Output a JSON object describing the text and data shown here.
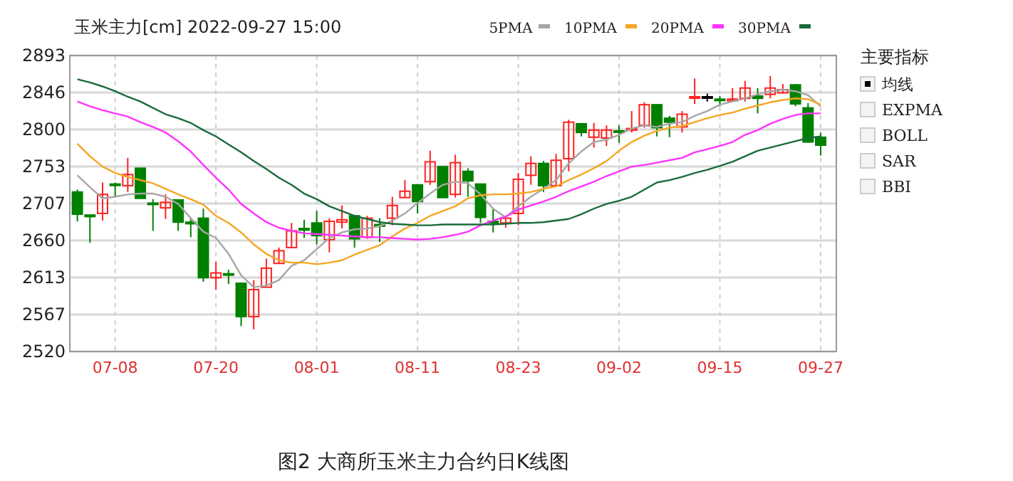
{
  "chart_data": {
    "type": "candlestick",
    "title": "玉米主力[cm] 2022-09-27 15:00",
    "categories": [
      null,
      null,
      null,
      "07-08",
      null,
      null,
      null,
      null,
      null,
      null,
      null,
      "07-20",
      null,
      null,
      null,
      null,
      null,
      null,
      null,
      "08-01",
      null,
      null,
      null,
      null,
      null,
      null,
      null,
      "08-11",
      null,
      null,
      null,
      null,
      null,
      null,
      null,
      "08-23",
      null,
      null,
      null,
      null,
      null,
      null,
      null,
      "09-02",
      null,
      null,
      null,
      null,
      null,
      null,
      null,
      "09-15",
      null,
      null,
      null,
      null,
      null,
      null,
      null,
      "09-27"
    ],
    "ohlc": [
      [
        2721,
        2724,
        2684,
        2693
      ],
      [
        2692,
        2692,
        2657,
        2690
      ],
      [
        2694,
        2733,
        2685,
        2718
      ],
      [
        2731,
        2733,
        2715,
        2730
      ],
      [
        2729,
        2764,
        2721,
        2743
      ],
      [
        2751,
        2751,
        2713,
        2713
      ],
      [
        2707,
        2712,
        2672,
        2706
      ],
      [
        2701,
        2718,
        2687,
        2708
      ],
      [
        2711,
        2711,
        2672,
        2683
      ],
      [
        2683,
        2688,
        2664,
        2681
      ],
      [
        2688,
        2700,
        2608,
        2613
      ],
      [
        2613,
        2633,
        2598,
        2619
      ],
      [
        2618,
        2623,
        2605,
        2617
      ],
      [
        2606,
        2606,
        2552,
        2564
      ],
      [
        2564,
        2610,
        2548,
        2598
      ],
      [
        2601,
        2637,
        2601,
        2625
      ],
      [
        2631,
        2651,
        2631,
        2647
      ],
      [
        2651,
        2682,
        2651,
        2672
      ],
      [
        2675,
        2686,
        2663,
        2673
      ],
      [
        2682,
        2697,
        2655,
        2666
      ],
      [
        2661,
        2688,
        2645,
        2684
      ],
      [
        2683,
        2704,
        2675,
        2686
      ],
      [
        2691,
        2691,
        2651,
        2662
      ],
      [
        2664,
        2691,
        2662,
        2688
      ],
      [
        2680,
        2688,
        2658,
        2678
      ],
      [
        2688,
        2715,
        2679,
        2704
      ],
      [
        2714,
        2736,
        2714,
        2722
      ],
      [
        2730,
        2730,
        2694,
        2709
      ],
      [
        2734,
        2773,
        2730,
        2759
      ],
      [
        2753,
        2753,
        2714,
        2714
      ],
      [
        2718,
        2768,
        2714,
        2758
      ],
      [
        2747,
        2751,
        2715,
        2735
      ],
      [
        2731,
        2731,
        2682,
        2689
      ],
      [
        2684,
        2701,
        2670,
        2683
      ],
      [
        2682,
        2690,
        2676,
        2688
      ],
      [
        2694,
        2745,
        2679,
        2737
      ],
      [
        2742,
        2766,
        2730,
        2757
      ],
      [
        2757,
        2760,
        2721,
        2729
      ],
      [
        2729,
        2769,
        2729,
        2761
      ],
      [
        2763,
        2812,
        2747,
        2809
      ],
      [
        2807,
        2807,
        2791,
        2796
      ],
      [
        2790,
        2808,
        2777,
        2799
      ],
      [
        2789,
        2805,
        2779,
        2799
      ],
      [
        2798,
        2805,
        2783,
        2797
      ],
      [
        2799,
        2823,
        2796,
        2801
      ],
      [
        2805,
        2834,
        2802,
        2831
      ],
      [
        2831,
        2831,
        2791,
        2802
      ],
      [
        2814,
        2817,
        2790,
        2809
      ],
      [
        2803,
        2823,
        2796,
        2819
      ],
      [
        2840,
        2864,
        2832,
        2841
      ],
      [
        2841,
        2845,
        2835,
        2841
      ],
      [
        2838,
        2842,
        2829,
        2837
      ],
      [
        2836,
        2852,
        2835,
        2838
      ],
      [
        2839,
        2861,
        2835,
        2852
      ],
      [
        2842,
        2852,
        2820,
        2839
      ],
      [
        2844,
        2867,
        2839,
        2852
      ],
      [
        2846,
        2857,
        2845,
        2850
      ],
      [
        2856,
        2857,
        2829,
        2832
      ],
      [
        2827,
        2833,
        2784,
        2784
      ],
      [
        2790,
        2796,
        2767,
        2780
      ]
    ],
    "series": [
      {
        "name": "5PMA",
        "type": "line",
        "color": "#a6a6a6",
        "values": [
          2742,
          2727,
          2713,
          2715,
          2718,
          2719,
          2719,
          2715,
          2706,
          2688,
          2671,
          2663,
          2643,
          2616,
          2601,
          2603,
          2610,
          2628,
          2635,
          2649,
          2663,
          2670,
          2674,
          2675,
          2678,
          2685,
          2694,
          2707,
          2719,
          2730,
          2734,
          2732,
          2718,
          2700,
          2689,
          2703,
          2715,
          2725,
          2736,
          2757,
          2772,
          2784,
          2787,
          2793,
          2801,
          2805,
          2803,
          2807,
          2809,
          2817,
          2823,
          2831,
          2835,
          2839,
          2844,
          2848,
          2850,
          2848,
          2843,
          2829
        ]
      },
      {
        "name": "10PMA",
        "type": "line",
        "color": "#f5a623",
        "values": [
          2782,
          2766,
          2753,
          2745,
          2740,
          2736,
          2732,
          2725,
          2718,
          2712,
          2705,
          2691,
          2682,
          2670,
          2655,
          2643,
          2635,
          2632,
          2632,
          2630,
          2632,
          2635,
          2642,
          2648,
          2654,
          2665,
          2675,
          2682,
          2691,
          2697,
          2703,
          2713,
          2717,
          2718,
          2718,
          2719,
          2721,
          2725,
          2728,
          2736,
          2743,
          2751,
          2760,
          2773,
          2784,
          2792,
          2798,
          2802,
          2804,
          2809,
          2814,
          2818,
          2821,
          2826,
          2830,
          2834,
          2837,
          2839,
          2838,
          2831
        ]
      },
      {
        "name": "20PMA",
        "type": "line",
        "color": "#ff33ff",
        "values": [
          2835,
          2829,
          2824,
          2820,
          2816,
          2809,
          2803,
          2796,
          2785,
          2772,
          2755,
          2739,
          2724,
          2706,
          2694,
          2683,
          2676,
          2672,
          2669,
          2668,
          2667,
          2666,
          2665,
          2664,
          2664,
          2663,
          2662,
          2661,
          2662,
          2664,
          2667,
          2671,
          2679,
          2685,
          2690,
          2699,
          2704,
          2709,
          2715,
          2722,
          2728,
          2734,
          2741,
          2747,
          2753,
          2755,
          2758,
          2761,
          2764,
          2771,
          2775,
          2779,
          2784,
          2793,
          2799,
          2807,
          2813,
          2818,
          2820,
          2820
        ]
      },
      {
        "name": "30PMA",
        "type": "line",
        "color": "#1a6b3c",
        "values": [
          2863,
          2859,
          2854,
          2848,
          2841,
          2835,
          2827,
          2819,
          2814,
          2808,
          2799,
          2791,
          2781,
          2771,
          2760,
          2750,
          2739,
          2730,
          2719,
          2712,
          2703,
          2697,
          2691,
          2687,
          2683,
          2681,
          2680,
          2679,
          2679,
          2680,
          2680,
          2680,
          2680,
          2680,
          2681,
          2682,
          2682,
          2683,
          2685,
          2687,
          2693,
          2700,
          2706,
          2710,
          2715,
          2724,
          2733,
          2736,
          2740,
          2745,
          2749,
          2754,
          2759,
          2766,
          2773,
          2777,
          2781,
          2785,
          2789,
          2791
        ]
      }
    ],
    "ylim": [
      2520,
      2893
    ],
    "yticks": [
      2520,
      {
        "value": 2566.625,
        "label": "2567"
      },
      {
        "value": 2613.25,
        "label": "2613"
      },
      {
        "value": 2659.875,
        "label": "2660"
      },
      {
        "value": 2706.5,
        "label": "2707"
      },
      {
        "value": 2753.125,
        "label": "2753"
      },
      {
        "value": 2799.75,
        "label": "2800"
      },
      {
        "value": 2846.375,
        "label": "2846"
      },
      2893
    ],
    "grid": true,
    "legend": "top right",
    "annotations": [
      "图2 大商所玉米主力合约日K线图",
      "主要指标",
      "均线",
      "EXPMA",
      "BOLL",
      "SAR",
      "BBI"
    ]
  }
}
